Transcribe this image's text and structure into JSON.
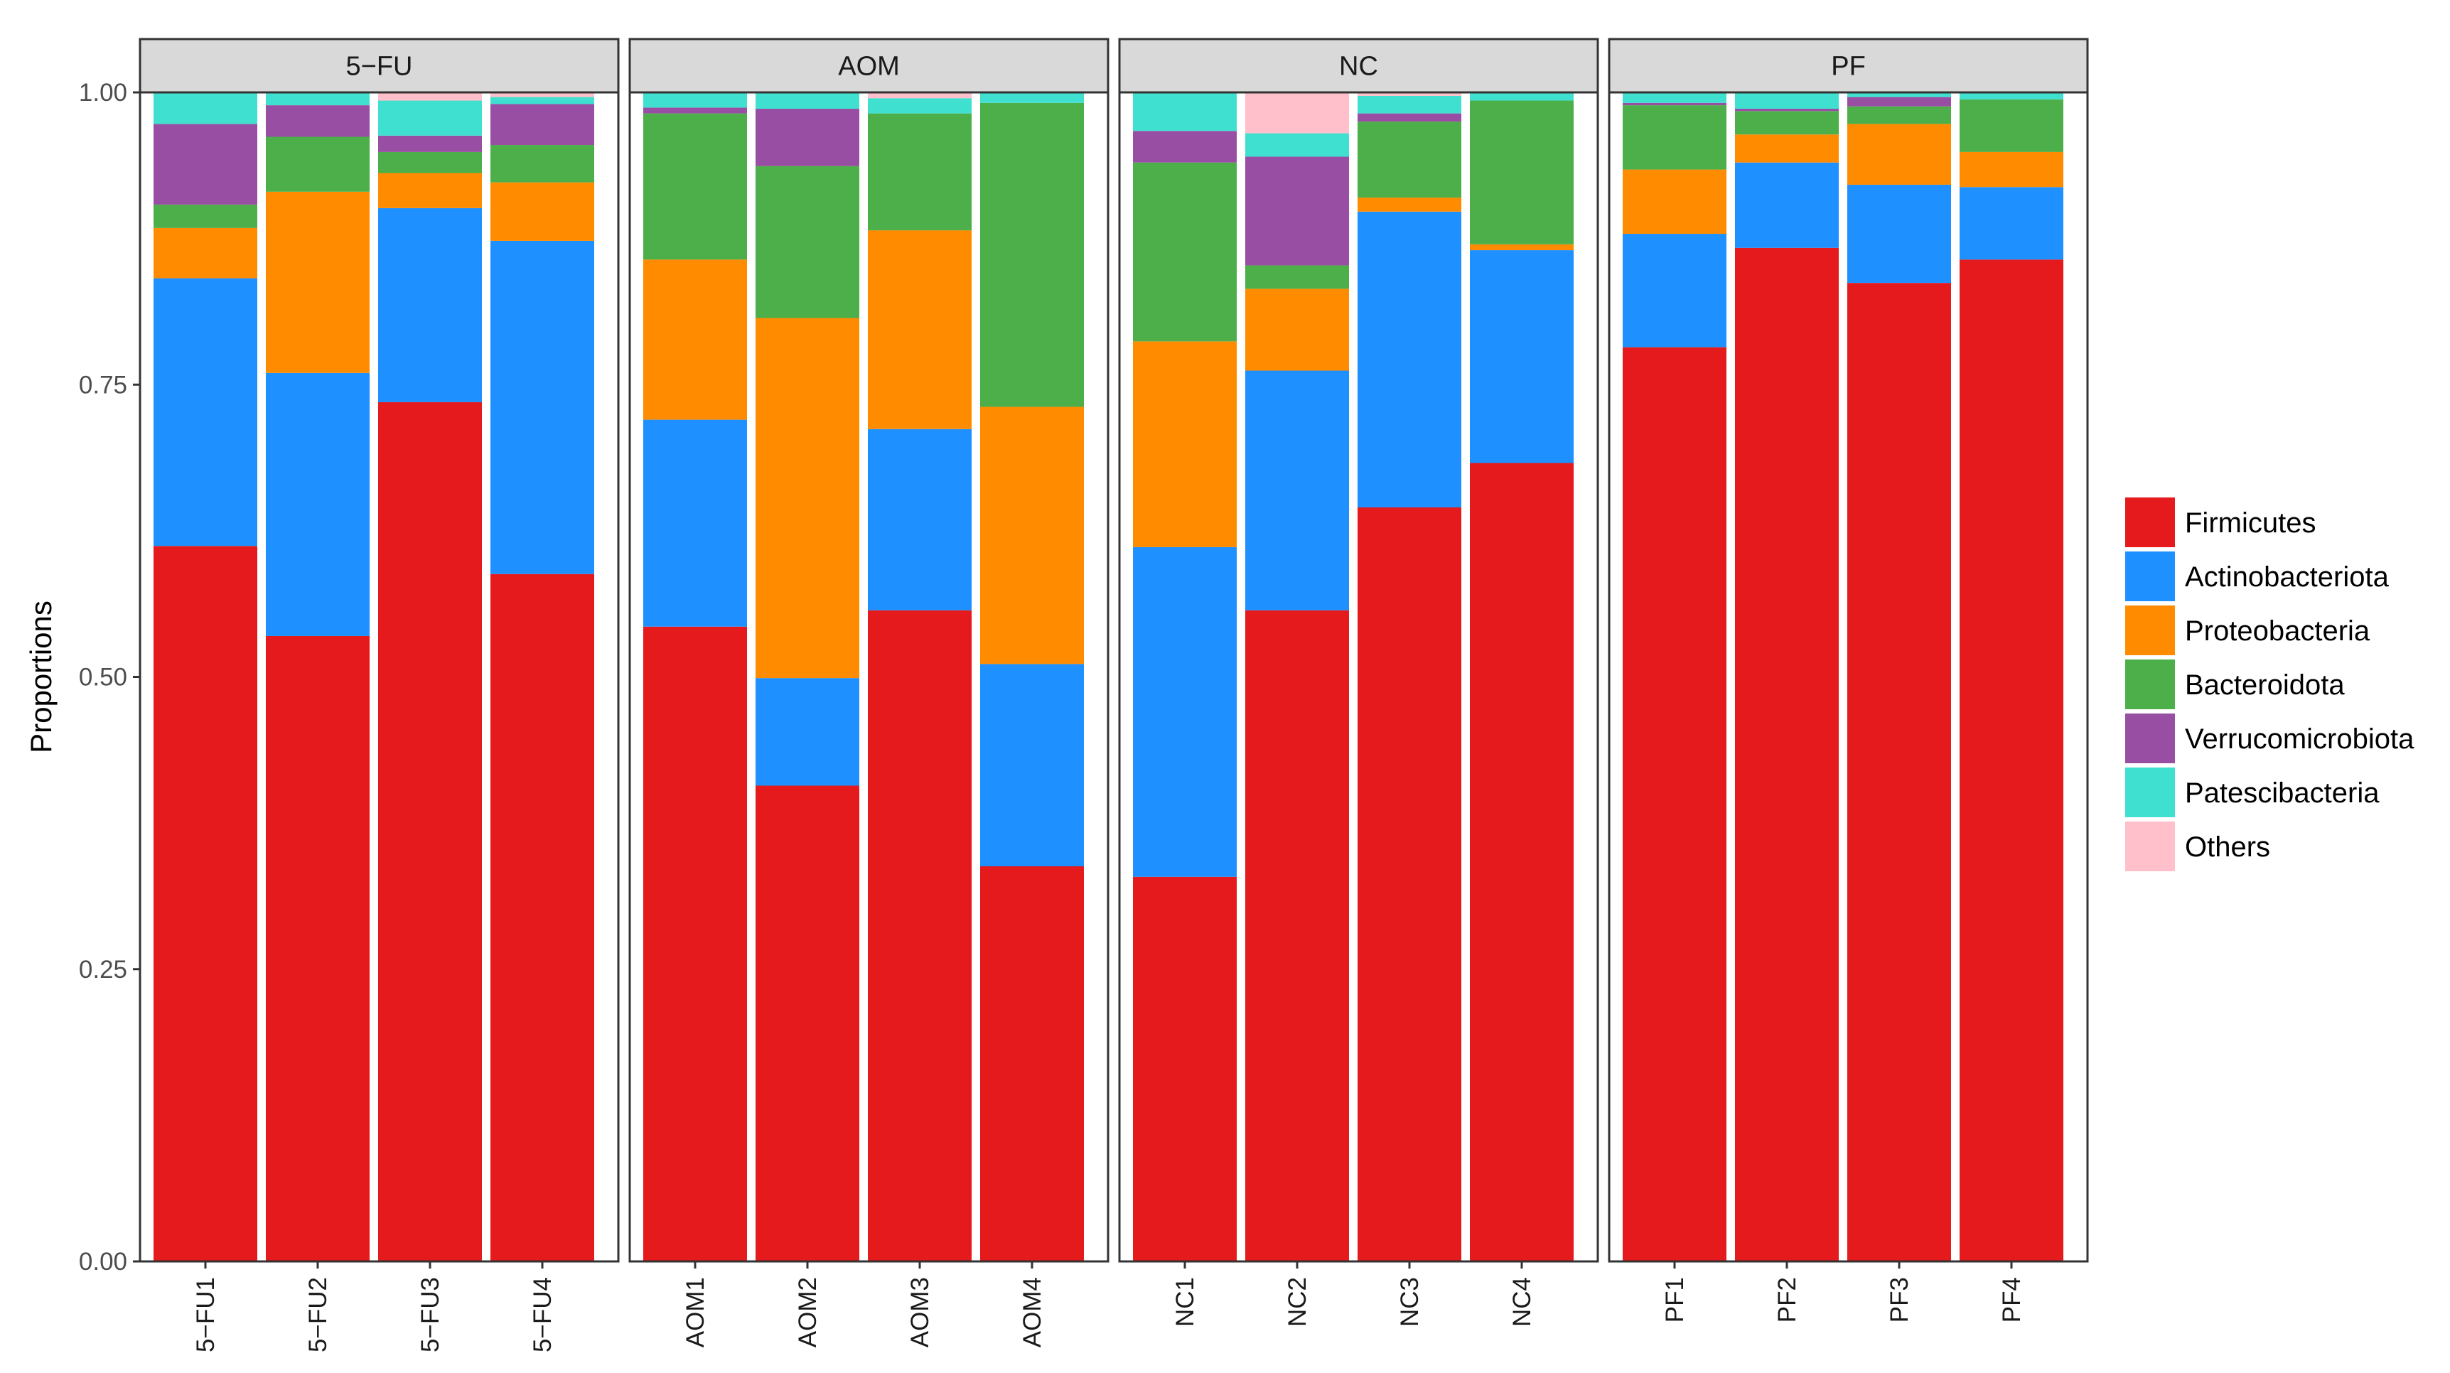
{
  "chart_data": {
    "type": "bar",
    "stacked": true,
    "faceted": true,
    "title": "",
    "xlabel": "",
    "ylabel": "Proportions",
    "ylim": [
      0,
      1
    ],
    "yticks": [
      "0.00",
      "0.25",
      "0.50",
      "0.75",
      "1.00"
    ],
    "legend_position": "right",
    "legend_order": [
      "Firmicutes",
      "Actinobacteriota",
      "Proteobacteria",
      "Bacteroidota",
      "Verrucomicrobiota",
      "Patescibacteria",
      "Others"
    ],
    "colors": {
      "Firmicutes": "#e41a1c",
      "Actinobacteriota": "#1e90ff",
      "Proteobacteria": "#ff8c00",
      "Bacteroidota": "#4daf4a",
      "Verrucomicrobiota": "#984ea3",
      "Patescibacteria": "#40e0d0",
      "Others": "#ffc0cb"
    },
    "facets": [
      {
        "name": "5−FU",
        "samples": [
          {
            "name": "5−FU1",
            "values": {
              "Firmicutes": 0.612,
              "Actinobacteriota": 0.229,
              "Proteobacteria": 0.043,
              "Bacteroidota": 0.02,
              "Verrucomicrobiota": 0.069,
              "Patescibacteria": 0.027,
              "Others": 0.0
            }
          },
          {
            "name": "5−FU2",
            "values": {
              "Firmicutes": 0.535,
              "Actinobacteriota": 0.225,
              "Proteobacteria": 0.155,
              "Bacteroidota": 0.047,
              "Verrucomicrobiota": 0.027,
              "Patescibacteria": 0.011,
              "Others": 0.0
            }
          },
          {
            "name": "5−FU3",
            "values": {
              "Firmicutes": 0.735,
              "Actinobacteriota": 0.166,
              "Proteobacteria": 0.03,
              "Bacteroidota": 0.018,
              "Verrucomicrobiota": 0.014,
              "Patescibacteria": 0.03,
              "Others": 0.007
            }
          },
          {
            "name": "5−FU4",
            "values": {
              "Firmicutes": 0.588,
              "Actinobacteriota": 0.285,
              "Proteobacteria": 0.05,
              "Bacteroidota": 0.032,
              "Verrucomicrobiota": 0.035,
              "Patescibacteria": 0.006,
              "Others": 0.004
            }
          }
        ]
      },
      {
        "name": "AOM",
        "samples": [
          {
            "name": "AOM1",
            "values": {
              "Firmicutes": 0.543,
              "Actinobacteriota": 0.177,
              "Proteobacteria": 0.137,
              "Bacteroidota": 0.125,
              "Verrucomicrobiota": 0.005,
              "Patescibacteria": 0.013,
              "Others": 0.0
            }
          },
          {
            "name": "AOM2",
            "values": {
              "Firmicutes": 0.407,
              "Actinobacteriota": 0.092,
              "Proteobacteria": 0.308,
              "Bacteroidota": 0.13,
              "Verrucomicrobiota": 0.049,
              "Patescibacteria": 0.014,
              "Others": 0.0
            }
          },
          {
            "name": "AOM3",
            "values": {
              "Firmicutes": 0.557,
              "Actinobacteriota": 0.155,
              "Proteobacteria": 0.17,
              "Bacteroidota": 0.1,
              "Verrucomicrobiota": 0.0,
              "Patescibacteria": 0.013,
              "Others": 0.005
            }
          },
          {
            "name": "AOM4",
            "values": {
              "Firmicutes": 0.338,
              "Actinobacteriota": 0.173,
              "Proteobacteria": 0.22,
              "Bacteroidota": 0.26,
              "Verrucomicrobiota": 0.0,
              "Patescibacteria": 0.009,
              "Others": 0.0
            }
          }
        ]
      },
      {
        "name": "NC",
        "samples": [
          {
            "name": "NC1",
            "values": {
              "Firmicutes": 0.329,
              "Actinobacteriota": 0.282,
              "Proteobacteria": 0.176,
              "Bacteroidota": 0.153,
              "Verrucomicrobiota": 0.027,
              "Patescibacteria": 0.033,
              "Others": 0.0
            }
          },
          {
            "name": "NC2",
            "values": {
              "Firmicutes": 0.557,
              "Actinobacteriota": 0.205,
              "Proteobacteria": 0.07,
              "Bacteroidota": 0.02,
              "Verrucomicrobiota": 0.093,
              "Patescibacteria": 0.02,
              "Others": 0.035
            }
          },
          {
            "name": "NC3",
            "values": {
              "Firmicutes": 0.645,
              "Actinobacteriota": 0.253,
              "Proteobacteria": 0.012,
              "Bacteroidota": 0.065,
              "Verrucomicrobiota": 0.007,
              "Patescibacteria": 0.015,
              "Others": 0.003
            }
          },
          {
            "name": "NC4",
            "values": {
              "Firmicutes": 0.683,
              "Actinobacteriota": 0.182,
              "Proteobacteria": 0.005,
              "Bacteroidota": 0.123,
              "Verrucomicrobiota": 0.0,
              "Patescibacteria": 0.007,
              "Others": 0.0
            }
          }
        ]
      },
      {
        "name": "PF",
        "samples": [
          {
            "name": "PF1",
            "values": {
              "Firmicutes": 0.782,
              "Actinobacteriota": 0.097,
              "Proteobacteria": 0.055,
              "Bacteroidota": 0.055,
              "Verrucomicrobiota": 0.002,
              "Patescibacteria": 0.009,
              "Others": 0.0
            }
          },
          {
            "name": "PF2",
            "values": {
              "Firmicutes": 0.867,
              "Actinobacteriota": 0.073,
              "Proteobacteria": 0.024,
              "Bacteroidota": 0.02,
              "Verrucomicrobiota": 0.002,
              "Patescibacteria": 0.014,
              "Others": 0.0
            }
          },
          {
            "name": "PF3",
            "values": {
              "Firmicutes": 0.837,
              "Actinobacteriota": 0.084,
              "Proteobacteria": 0.052,
              "Bacteroidota": 0.015,
              "Verrucomicrobiota": 0.008,
              "Patescibacteria": 0.004,
              "Others": 0.0
            }
          },
          {
            "name": "PF4",
            "values": {
              "Firmicutes": 0.857,
              "Actinobacteriota": 0.062,
              "Proteobacteria": 0.03,
              "Bacteroidota": 0.045,
              "Verrucomicrobiota": 0.0,
              "Patescibacteria": 0.006,
              "Others": 0.0
            }
          }
        ]
      }
    ]
  }
}
